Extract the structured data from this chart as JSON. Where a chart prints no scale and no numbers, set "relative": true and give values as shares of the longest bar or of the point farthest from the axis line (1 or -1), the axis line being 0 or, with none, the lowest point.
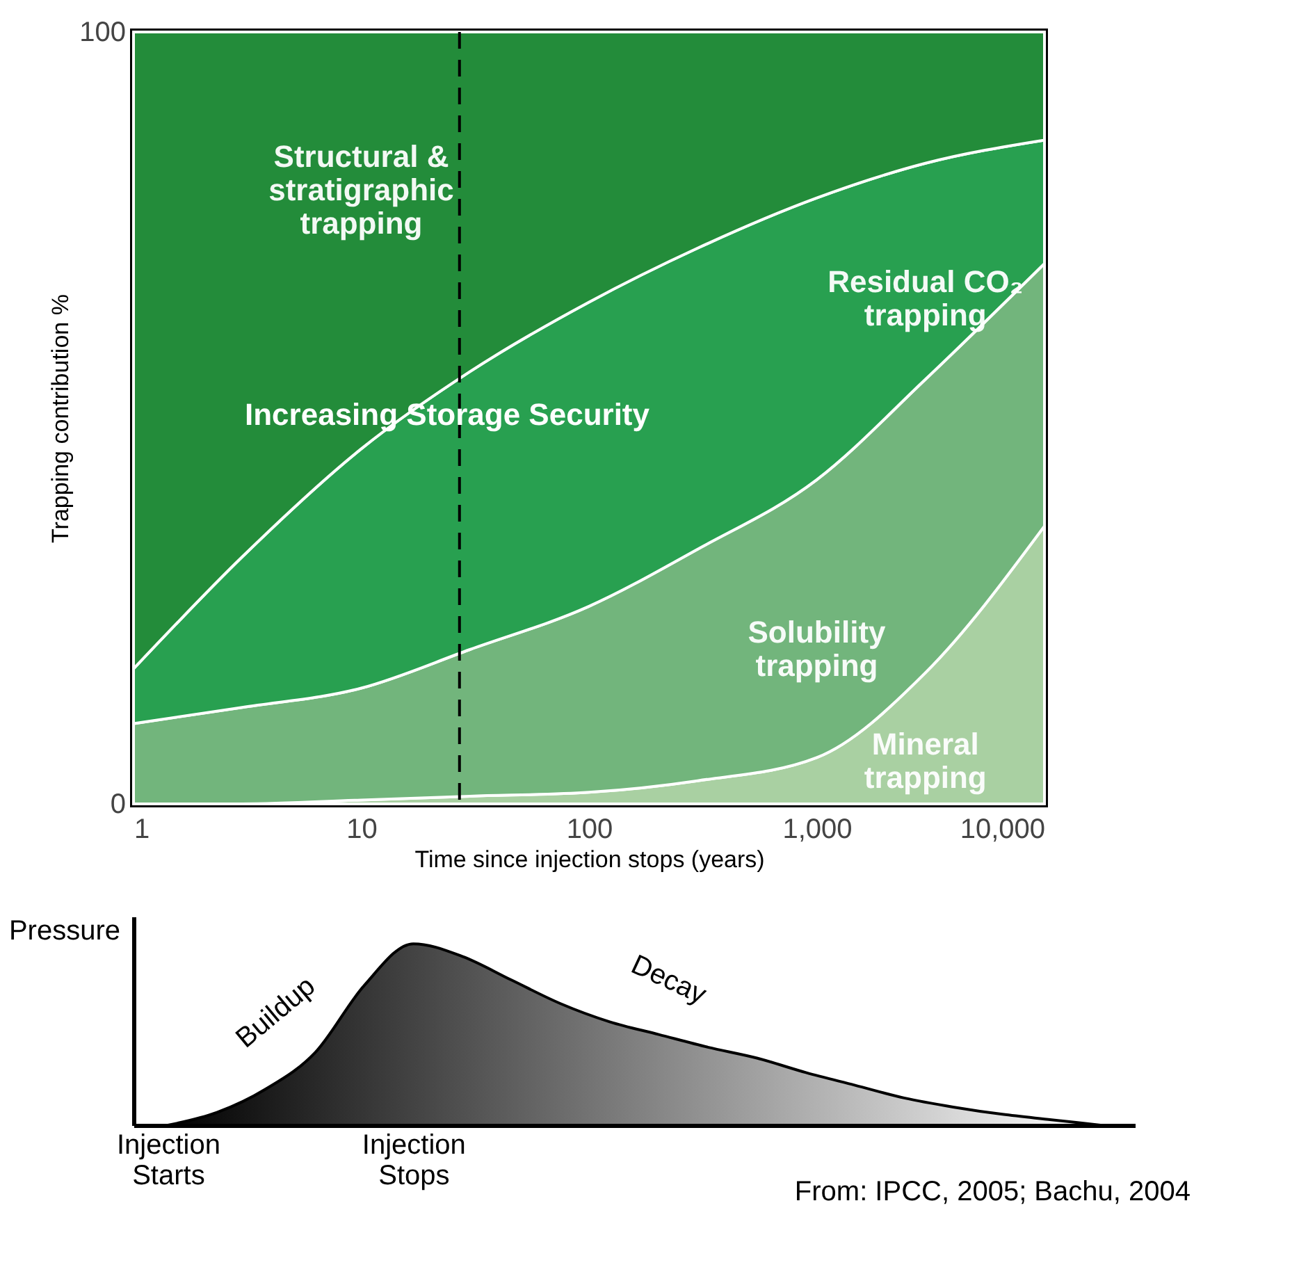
{
  "chart_data": [
    {
      "type": "area",
      "stacked": true,
      "xlabel": "Time since injection stops (years)",
      "ylabel": "Trapping contribution %",
      "x": [
        1,
        3,
        10,
        30,
        100,
        300,
        1000,
        3000,
        10000
      ],
      "series": [
        {
          "name": "Mineral\ntrapping",
          "color": "#a9d0a2",
          "values": [
            0,
            0,
            0.5,
            1,
            1.5,
            3,
            6,
            17,
            36
          ]
        },
        {
          "name": "Solubility\ntrapping",
          "color": "#72b57c",
          "values": [
            10.4,
            12.5,
            14.5,
            19,
            24.1,
            30,
            36,
            38,
            34
          ]
        },
        {
          "name": "Residual CO₂\ntrapping",
          "color": "#28a050",
          "values": [
            7.1,
            19.5,
            31,
            36,
            39.4,
            39,
            36.5,
            28,
            16
          ]
        },
        {
          "name": "Structural &\nstratigraphic\ntrapping",
          "color": "#238c3a",
          "values": [
            82.5,
            68,
            54,
            44,
            35,
            28,
            21.5,
            17,
            14
          ]
        }
      ],
      "log": "x",
      "xlim": [
        1,
        10000
      ],
      "xticks": [
        1,
        10,
        100,
        {
          "value": 1000,
          "label": "1,000"
        },
        {
          "value": 10000,
          "label": "10,000"
        }
      ],
      "ylim": [
        0,
        100
      ],
      "yticks": [
        0,
        100
      ],
      "grid": false,
      "legend": false,
      "ref_lines": [
        {
          "axis": "x",
          "value": 27,
          "color": "#000000",
          "line_style": "dashed"
        }
      ],
      "annotations": [
        "Increasing Storage Security"
      ]
    },
    {
      "type": "area",
      "relative": true,
      "ylabel": "Pressure",
      "categories": [
        "Injection Starts",
        null,
        null,
        null,
        null,
        "Injection Stops",
        null,
        null,
        null,
        null,
        null,
        null,
        null,
        null,
        null,
        null,
        null,
        null,
        null,
        null
      ],
      "series": [
        {
          "color": "#000000",
          "values": [
            0,
            0.07,
            0.2,
            0.4,
            0.77,
            1.0,
            0.93,
            0.8,
            0.67,
            0.57,
            0.5,
            0.43,
            0.37,
            0.29,
            0.22,
            0.15,
            0.1,
            0.06,
            0.03,
            0
          ]
        }
      ],
      "grid": false,
      "annotations": [
        "Buildup",
        "Decay",
        "From: IPCC, 2005; Bachu, 2004"
      ]
    }
  ]
}
